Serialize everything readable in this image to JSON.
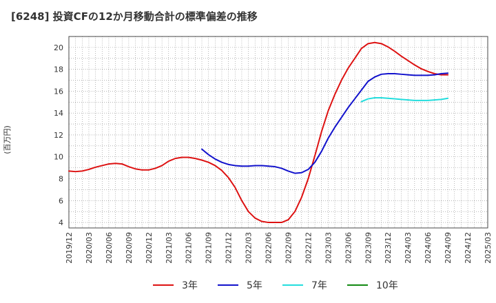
{
  "chart_data": {
    "type": "line",
    "title": "[6248]  投資CFの12か月移動合計の標準偏差の推移",
    "ylabel": "(百万円)",
    "xlabel": "",
    "ylim": [
      3.5,
      21
    ],
    "yticks": [
      4,
      6,
      8,
      10,
      12,
      14,
      16,
      18,
      20
    ],
    "grid": true,
    "legend_position": "bottom",
    "x_tick_labels": [
      "2019/12",
      "2020/03",
      "2020/06",
      "2020/09",
      "2020/12",
      "2021/03",
      "2021/06",
      "2021/09",
      "2021/12",
      "2022/03",
      "2022/06",
      "2022/09",
      "2022/12",
      "2023/03",
      "2023/06",
      "2023/09",
      "2023/12",
      "2024/03",
      "2024/06",
      "2024/09",
      "2024/12",
      "2025/03"
    ],
    "series": [
      {
        "name": "3年",
        "color": "#dd1111",
        "x": [
          "2019/12",
          "2020/01",
          "2020/02",
          "2020/03",
          "2020/04",
          "2020/05",
          "2020/06",
          "2020/07",
          "2020/08",
          "2020/09",
          "2020/10",
          "2020/11",
          "2020/12",
          "2021/01",
          "2021/02",
          "2021/03",
          "2021/04",
          "2021/05",
          "2021/06",
          "2021/07",
          "2021/08",
          "2021/09",
          "2021/10",
          "2021/11",
          "2021/12",
          "2022/01",
          "2022/02",
          "2022/03",
          "2022/04",
          "2022/05",
          "2022/06",
          "2022/07",
          "2022/08",
          "2022/09",
          "2022/10",
          "2022/11",
          "2022/12",
          "2023/01",
          "2023/02",
          "2023/03",
          "2023/04",
          "2023/05",
          "2023/06",
          "2023/07",
          "2023/08",
          "2023/09",
          "2023/10",
          "2023/11",
          "2023/12",
          "2024/01",
          "2024/02",
          "2024/03",
          "2024/04",
          "2024/05",
          "2024/06",
          "2024/07",
          "2024/08",
          "2024/09"
        ],
        "values": [
          8.7,
          8.65,
          8.7,
          8.85,
          9.05,
          9.2,
          9.35,
          9.4,
          9.35,
          9.1,
          8.9,
          8.8,
          8.8,
          8.95,
          9.2,
          9.6,
          9.85,
          9.95,
          9.95,
          9.85,
          9.7,
          9.5,
          9.2,
          8.75,
          8.1,
          7.2,
          6.0,
          5.0,
          4.4,
          4.1,
          4.0,
          4.0,
          4.0,
          4.25,
          5.0,
          6.3,
          8.0,
          10.1,
          12.3,
          14.2,
          15.7,
          17.0,
          18.1,
          19.0,
          19.9,
          20.35,
          20.45,
          20.35,
          20.05,
          19.65,
          19.2,
          18.8,
          18.4,
          18.05,
          17.8,
          17.6,
          17.5,
          17.5
        ]
      },
      {
        "name": "5年",
        "color": "#1111cc",
        "x": [
          "2021/08",
          "2021/09",
          "2021/10",
          "2021/11",
          "2021/12",
          "2022/01",
          "2022/02",
          "2022/03",
          "2022/04",
          "2022/05",
          "2022/06",
          "2022/07",
          "2022/08",
          "2022/09",
          "2022/10",
          "2022/11",
          "2022/12",
          "2023/01",
          "2023/02",
          "2023/03",
          "2023/04",
          "2023/05",
          "2023/06",
          "2023/07",
          "2023/08",
          "2023/09",
          "2023/10",
          "2023/11",
          "2023/12",
          "2024/01",
          "2024/02",
          "2024/03",
          "2024/04",
          "2024/05",
          "2024/06",
          "2024/07",
          "2024/08",
          "2024/09"
        ],
        "values": [
          10.7,
          10.2,
          9.8,
          9.5,
          9.3,
          9.2,
          9.15,
          9.15,
          9.2,
          9.2,
          9.15,
          9.1,
          8.95,
          8.7,
          8.5,
          8.55,
          8.85,
          9.5,
          10.5,
          11.7,
          12.7,
          13.6,
          14.5,
          15.3,
          16.1,
          16.9,
          17.3,
          17.55,
          17.6,
          17.6,
          17.55,
          17.5,
          17.45,
          17.45,
          17.45,
          17.5,
          17.6,
          17.65
        ]
      },
      {
        "name": "7年",
        "color": "#22dddd",
        "x": [
          "2023/08",
          "2023/09",
          "2023/10",
          "2023/11",
          "2023/12",
          "2024/01",
          "2024/02",
          "2024/03",
          "2024/04",
          "2024/05",
          "2024/06",
          "2024/07",
          "2024/08",
          "2024/09"
        ],
        "values": [
          15.05,
          15.3,
          15.4,
          15.4,
          15.35,
          15.3,
          15.25,
          15.2,
          15.15,
          15.15,
          15.15,
          15.2,
          15.25,
          15.35
        ]
      },
      {
        "name": "10年",
        "color": "#118811",
        "x": [],
        "values": []
      }
    ]
  }
}
